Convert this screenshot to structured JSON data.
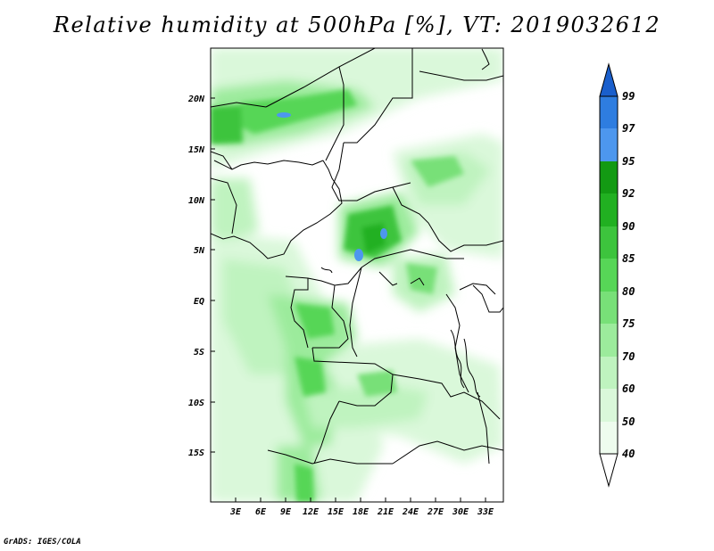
{
  "title": "Relative humidity at 500hPa [%], VT: 2019032612",
  "credit": "GrADS: IGES/COLA",
  "map": {
    "lat_labels": [
      "20N",
      "15N",
      "10N",
      "5N",
      "EQ",
      "5S",
      "10S",
      "15S"
    ],
    "lon_labels": [
      "3E",
      "6E",
      "9E",
      "12E",
      "15E",
      "18E",
      "21E",
      "24E",
      "27E",
      "30E",
      "33E"
    ]
  },
  "colorbar": {
    "labels": [
      "99",
      "97",
      "95",
      "92",
      "90",
      "85",
      "80",
      "75",
      "70",
      "60",
      "50",
      "40"
    ],
    "colors": {
      "over": "#1a5fcc",
      "97_99": "#2e7de0",
      "95_97": "#4d97ee",
      "92_95": "#139a13",
      "90_92": "#21b021",
      "85_90": "#3dc43d",
      "80_85": "#57d657",
      "75_80": "#78e078",
      "70_75": "#9ceb9c",
      "60_70": "#bff3bf",
      "50_60": "#daf8da",
      "40_50": "#eefcee",
      "under": "#ffffff"
    }
  }
}
